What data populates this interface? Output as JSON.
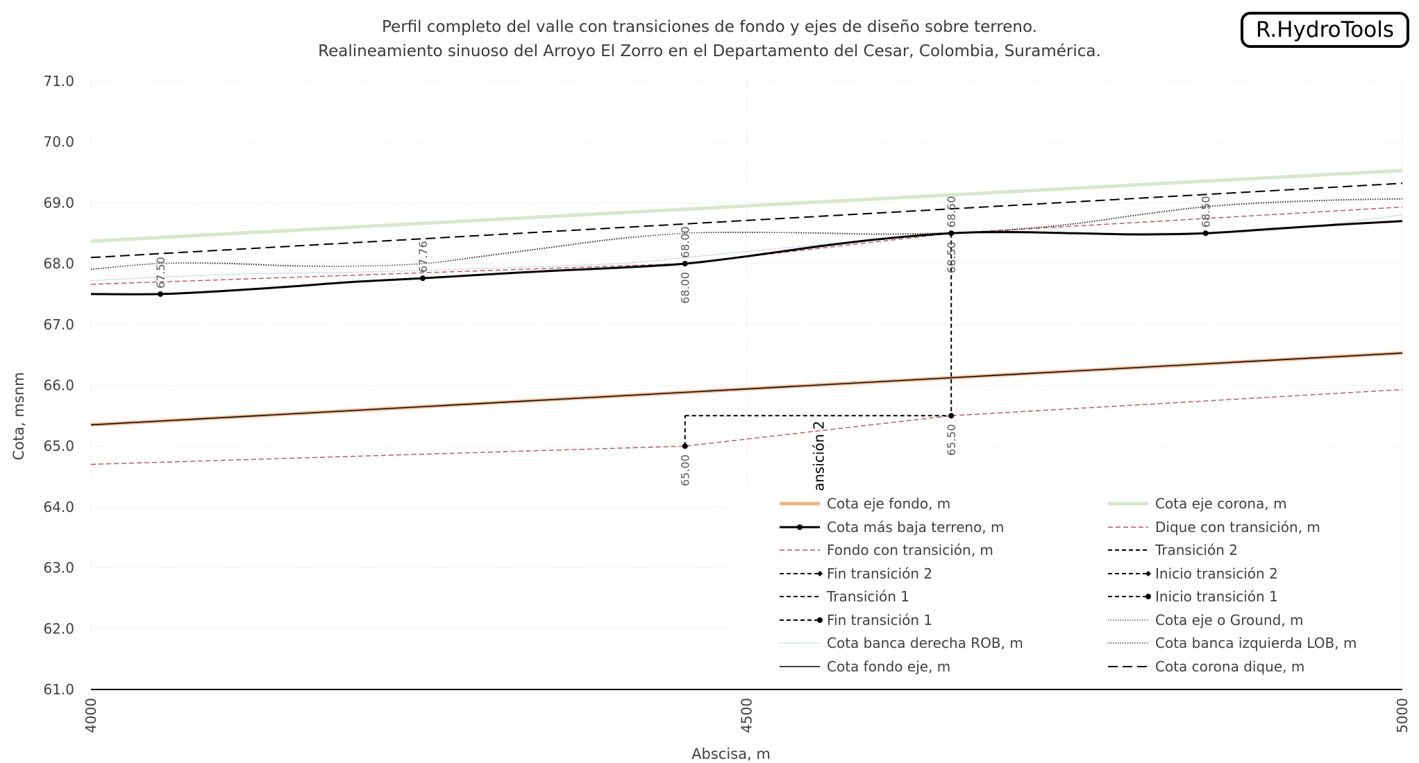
{
  "title_line1": "Perfil completo del valle con transiciones de fondo y ejes de diseño sobre terreno.",
  "title_line2": "Realineamiento sinuoso del Arroyo El Zorro en el Departamento del Cesar, Colombia, Suramérica.",
  "logo": "R.HydroTools",
  "chart_data": {
    "type": "line",
    "xlabel": "Abscisa, m",
    "ylabel": "Cota, msnm",
    "xlim": [
      4000,
      5000
    ],
    "ylim": [
      61.0,
      71.0
    ],
    "x_ticks": [
      4000,
      4500,
      5000
    ],
    "y_ticks": [
      "61.0",
      "62.0",
      "63.0",
      "64.0",
      "65.0",
      "66.0",
      "67.0",
      "68.0",
      "69.0",
      "70.0",
      "71.0"
    ],
    "grid": true,
    "legend_position": "bottom-right",
    "colors": {
      "eje_fondo": "#f4b183",
      "eje_corona": "#d6e9c9",
      "terreno": "#000000",
      "transicion_red": "#c0504d",
      "banca_derecha": "#8ea9db",
      "ground": "#404040"
    },
    "series": [
      {
        "name": "Cota eje fondo, m",
        "x": [
          4000,
          5000
        ],
        "y": [
          65.35,
          66.53
        ]
      },
      {
        "name": "Cota eje corona, m",
        "x": [
          4000,
          5000
        ],
        "y": [
          68.37,
          69.53
        ]
      },
      {
        "name": "Cota más baja terreno, m",
        "x": [
          4000,
          4053,
          4100,
          4150,
          4200,
          4253,
          4300,
          4350,
          4400,
          4453,
          4500,
          4550,
          4600,
          4656,
          4700,
          4750,
          4800,
          4850,
          4900,
          4950,
          5000
        ],
        "y": [
          67.5,
          67.5,
          67.55,
          67.62,
          67.7,
          67.76,
          67.82,
          67.88,
          67.93,
          68.0,
          68.12,
          68.27,
          68.4,
          68.5,
          68.52,
          68.5,
          68.48,
          68.5,
          68.57,
          68.64,
          68.7
        ]
      },
      {
        "name": "Dique con transición, m",
        "x": [
          4000,
          4453,
          4656,
          5000
        ],
        "y": [
          67.66,
          68.0,
          68.5,
          68.93
        ]
      },
      {
        "name": "Fondo con transición, m",
        "x": [
          4000,
          4453,
          4656,
          5000
        ],
        "y": [
          64.7,
          65.0,
          65.5,
          65.93
        ]
      },
      {
        "name": "Transición 2",
        "x": [
          4453,
          4656,
          4656
        ],
        "y": [
          65.5,
          65.5,
          68.5
        ]
      },
      {
        "name": "Fin transición 2",
        "x": [
          4453,
          4453
        ],
        "y": [
          65.0,
          65.5
        ]
      },
      {
        "name": "Inicio transición 2",
        "x": [],
        "y": []
      },
      {
        "name": "Transición 1",
        "x": [],
        "y": []
      },
      {
        "name": "Inicio transición 1",
        "x": [],
        "y": []
      },
      {
        "name": "Fin transición 1",
        "x": [],
        "y": []
      },
      {
        "name": "Cota eje o Ground, m",
        "x": [
          4000,
          4050,
          4100,
          4150,
          4200,
          4253,
          4300,
          4350,
          4400,
          4453,
          4500,
          4550,
          4600,
          4656,
          4700,
          4750,
          4800,
          4850,
          4900,
          4950,
          5000
        ],
        "y": [
          67.9,
          68.0,
          68.0,
          67.96,
          67.96,
          68.0,
          68.12,
          68.26,
          68.4,
          68.5,
          68.52,
          68.5,
          68.48,
          68.5,
          68.55,
          68.65,
          68.8,
          68.93,
          69.0,
          69.04,
          69.06
        ]
      },
      {
        "name": "Cota banca derecha ROB, m",
        "x": [
          4000,
          4100,
          4200,
          4300,
          4400,
          4453,
          4500,
          4600,
          4656,
          4700,
          4800,
          4900,
          5000
        ],
        "y": [
          67.72,
          67.82,
          67.86,
          67.92,
          68.0,
          68.1,
          68.2,
          68.4,
          68.5,
          68.5,
          68.5,
          68.55,
          68.8
        ]
      },
      {
        "name": "Cota banca izquierda LOB, m",
        "x": [
          4000,
          4050,
          4100,
          4150,
          4200,
          4253,
          4300,
          4350,
          4400,
          4453,
          4500,
          4550,
          4600,
          4656,
          4700,
          4750,
          4800,
          4850,
          4900,
          4950,
          5000
        ],
        "y": [
          67.91,
          68.0,
          68.01,
          67.97,
          67.96,
          68.0,
          68.13,
          68.27,
          68.41,
          68.5,
          68.51,
          68.51,
          68.49,
          68.51,
          68.56,
          68.66,
          68.81,
          68.94,
          69.01,
          69.05,
          69.07
        ]
      },
      {
        "name": "Cota fondo eje, m",
        "x": [
          4000,
          5000
        ],
        "y": [
          65.35,
          66.53
        ]
      },
      {
        "name": "Cota corona dique, m",
        "x": [
          4000,
          5000
        ],
        "y": [
          68.1,
          69.32
        ]
      }
    ],
    "markers": [
      {
        "series": "Cota más baja terreno, m",
        "x": [
          4053,
          4253,
          4453,
          4656,
          4850
        ],
        "y": [
          67.5,
          67.76,
          68.0,
          68.5,
          68.5
        ]
      },
      {
        "series": "Fondo con transición, m",
        "x": [
          4453,
          4656
        ],
        "y": [
          65.0,
          65.5
        ]
      }
    ],
    "data_labels": [
      {
        "text": "67.50",
        "x": 4053,
        "y": 67.5
      },
      {
        "text": "67.76",
        "x": 4253,
        "y": 67.76
      },
      {
        "text": "68.00",
        "x": 4453,
        "y": 68.0
      },
      {
        "text": "68.00",
        "x": 4453,
        "y": 68.0
      },
      {
        "text": "68.50",
        "x": 4656,
        "y": 68.5
      },
      {
        "text": "68.50",
        "x": 4656,
        "y": 68.5
      },
      {
        "text": "68.50",
        "x": 4850,
        "y": 68.5
      },
      {
        "text": "65.00",
        "x": 4453,
        "y": 65.0
      },
      {
        "text": "65.50",
        "x": 4656,
        "y": 65.5
      }
    ],
    "annotations": [
      "ansición 2"
    ]
  },
  "legend": [
    {
      "label": "Cota eje fondo, m",
      "style": "thick-orange"
    },
    {
      "label": "Cota eje corona, m",
      "style": "thick-green"
    },
    {
      "label": "Cota más baja terreno, m",
      "style": "black-marker"
    },
    {
      "label": "Dique con transición, m",
      "style": "red-dash"
    },
    {
      "label": "Fondo con transición, m",
      "style": "red-dash"
    },
    {
      "label": "Transición 2",
      "style": "black-dash"
    },
    {
      "label": "Fin transición 2",
      "style": "black-dash-diamond"
    },
    {
      "label": "Inicio transición 2",
      "style": "black-dash-diamond"
    },
    {
      "label": "Transición 1",
      "style": "black-dash"
    },
    {
      "label": "Inicio transición 1",
      "style": "black-dash-dot"
    },
    {
      "label": "Fin transición 1",
      "style": "black-dash-dot"
    },
    {
      "label": "Cota eje o Ground, m",
      "style": "dotted-gray"
    },
    {
      "label": "Cota banca derecha ROB, m",
      "style": "dotted-blue"
    },
    {
      "label": "Cota banca izquierda LOB, m",
      "style": "dotted-dark"
    },
    {
      "label": "Cota fondo eje, m",
      "style": "solid-black"
    },
    {
      "label": "Cota corona dique, m",
      "style": "long-dash-black"
    }
  ]
}
